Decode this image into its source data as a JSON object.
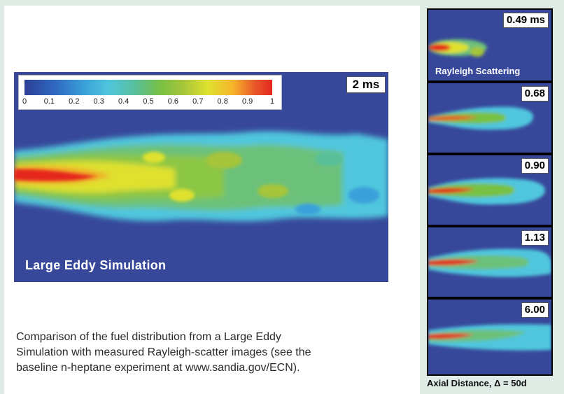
{
  "les_panel": {
    "time_label": "2 ms",
    "caption_label": "Large Eddy Simulation",
    "colorbar_ticks": [
      "0",
      "0.1",
      "0.2",
      "0.3",
      "0.4",
      "0.5",
      "0.6",
      "0.7",
      "0.8",
      "0.9",
      "1"
    ]
  },
  "caption_lines": [
    "Comparison of the fuel distribution from a Large Eddy",
    "Simulation with measured Rayleigh-scatter images (see the",
    "baseline n-heptane experiment at www.sandia.gov/ECN)."
  ],
  "rayleigh_panels": [
    {
      "time_label": "0.49 ms"
    },
    {
      "time_label": "0.68"
    },
    {
      "time_label": "0.90"
    },
    {
      "time_label": "1.13"
    },
    {
      "time_label": "6.00"
    }
  ],
  "rayleigh_label": "Rayleigh Scattering",
  "axis_caption": "Axial Distance,  Δ = 50d",
  "colors": {
    "background": "#37489a",
    "page": "#dfece6",
    "low": "#4fc6dd",
    "mid": "#79c142",
    "high": "#dfe12f",
    "peak": "#e5261f"
  }
}
